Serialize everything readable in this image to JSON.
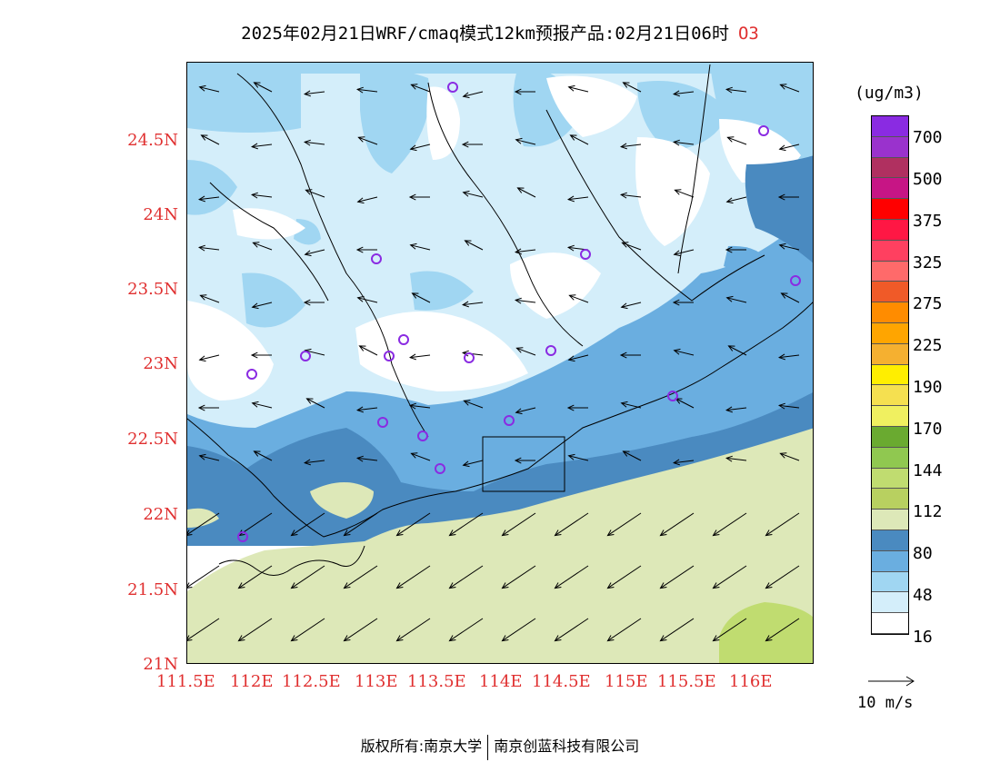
{
  "title": "2025年02月21日WRF/cmaq模式12km预报产品:02月21日06时",
  "species": "O3",
  "lat_labels": [
    "24.5N",
    "24N",
    "23.5N",
    "23N",
    "22.5N",
    "22N",
    "21.5N",
    "21N"
  ],
  "lon_labels": [
    "111.5E",
    "112E",
    "112.5E",
    "113E",
    "113.5E",
    "114E",
    "114.5E",
    "115E",
    "115.5E",
    "116E"
  ],
  "legend": {
    "unit": "(ug/m3)",
    "labels": [
      "700",
      "500",
      "375",
      "325",
      "275",
      "225",
      "190",
      "170",
      "144",
      "112",
      "80",
      "48",
      "16"
    ],
    "colors": [
      "#8a2be2",
      "#9a32cd",
      "#b03060",
      "#c71585",
      "#ff0000",
      "#ff1744",
      "#ff4060",
      "#ff6a6a",
      "#f05a28",
      "#ff8c00",
      "#ffa500",
      "#f5b030",
      "#ffee00",
      "#f5e050",
      "#f0f060",
      "#6aaa30",
      "#90c850",
      "#c0dc70",
      "#b8d060",
      "#dde8b8",
      "#4a8ac0",
      "#6aaee0",
      "#a0d6f2",
      "#d4eefa",
      "#ffffff"
    ]
  },
  "vector_ref": "10 m/s",
  "footer": {
    "left": "版权所有:南京大学",
    "right": "南京创蓝科技有限公司"
  },
  "stations": [
    [
      276,
      411
    ],
    [
      335,
      391
    ],
    [
      413,
      284
    ],
    [
      427,
      391
    ],
    [
      443,
      373
    ],
    [
      420,
      464
    ],
    [
      464,
      479
    ],
    [
      483,
      515
    ],
    [
      497,
      95
    ],
    [
      515,
      393
    ],
    [
      559,
      462
    ],
    [
      605,
      385
    ],
    [
      643,
      279
    ],
    [
      739,
      435
    ],
    [
      839,
      143
    ],
    [
      874,
      308
    ],
    [
      266,
      590
    ]
  ]
}
